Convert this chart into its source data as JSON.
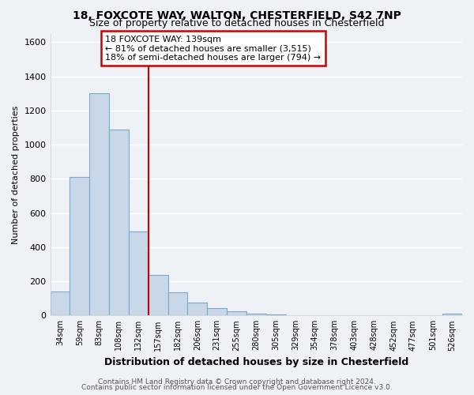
{
  "title1": "18, FOXCOTE WAY, WALTON, CHESTERFIELD, S42 7NP",
  "title2": "Size of property relative to detached houses in Chesterfield",
  "xlabel": "Distribution of detached houses by size in Chesterfield",
  "ylabel": "Number of detached properties",
  "bar_labels": [
    "34sqm",
    "59sqm",
    "83sqm",
    "108sqm",
    "132sqm",
    "157sqm",
    "182sqm",
    "206sqm",
    "231sqm",
    "255sqm",
    "280sqm",
    "305sqm",
    "329sqm",
    "354sqm",
    "378sqm",
    "403sqm",
    "428sqm",
    "452sqm",
    "477sqm",
    "501sqm",
    "526sqm"
  ],
  "bar_values": [
    140,
    810,
    1300,
    1090,
    490,
    235,
    135,
    75,
    45,
    25,
    12,
    5,
    3,
    1,
    0,
    0,
    0,
    0,
    0,
    0,
    10
  ],
  "bar_color": "#c8d8e8",
  "bar_edgecolor": "#7aaac8",
  "ylim": [
    0,
    1650
  ],
  "yticks": [
    0,
    200,
    400,
    600,
    800,
    1000,
    1200,
    1400,
    1600
  ],
  "vline_x": 4.5,
  "vline_color": "#cc0000",
  "annotation_line1": "18 FOXCOTE WAY: 139sqm",
  "annotation_line2": "← 81% of detached houses are smaller (3,515)",
  "annotation_line3": "18% of semi-detached houses are larger (794) →",
  "annotation_box_color": "#cc0000",
  "footer1": "Contains HM Land Registry data © Crown copyright and database right 2024.",
  "footer2": "Contains public sector information licensed under the Open Government Licence v3.0.",
  "background_color": "#eef2f7",
  "grid_color": "#d8e0ec"
}
